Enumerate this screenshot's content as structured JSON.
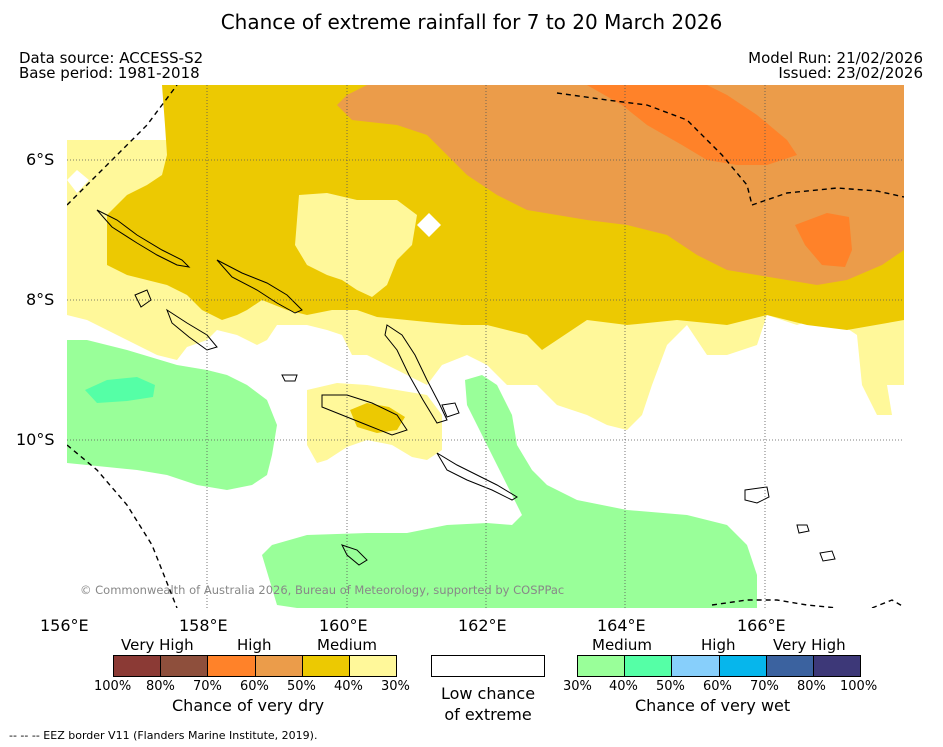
{
  "title": "Chance of extreme rainfall for 7 to 20 March 2026",
  "meta": {
    "data_source": "Data source: ACCESS-S2",
    "base_period": "Base period: 1981-2018",
    "model_run": "Model Run: 21/02/2026",
    "issued": "Issued: 23/02/2026"
  },
  "axes": {
    "lat_labels": [
      "6°S",
      "8°S",
      "10°S"
    ],
    "lon_labels": [
      "156°E",
      "158°E",
      "160°E",
      "162°E",
      "164°E",
      "166°E"
    ]
  },
  "copyright": "© Commonwealth of Australia 2026, Bureau of Meteorology, supported by COSPPac",
  "legend": {
    "dry": {
      "categories": [
        "Very High",
        "High",
        "Medium"
      ],
      "ticks": [
        "100%",
        "80%",
        "70%",
        "60%",
        "50%",
        "40%",
        "30%"
      ],
      "colors": [
        "#8b3a35",
        "#8e4f3c",
        "#ff8229",
        "#eb9c4a",
        "#ecc902",
        "#fff89a"
      ],
      "caption": "Chance of very dry"
    },
    "neutral": {
      "caption_line1": "Low chance",
      "caption_line2": "of extreme"
    },
    "wet": {
      "categories": [
        "Medium",
        "High",
        "Very High"
      ],
      "ticks": [
        "30%",
        "40%",
        "50%",
        "60%",
        "70%",
        "80%",
        "100%"
      ],
      "colors": [
        "#99ff99",
        "#55ffa6",
        "#87cffb",
        "#06b6ec",
        "#3b629f",
        "#3d3878"
      ],
      "caption": "Chance of very wet"
    }
  },
  "footer": "--  --  -- EEZ border V11 (Flanders Marine Institute, 2019)."
}
